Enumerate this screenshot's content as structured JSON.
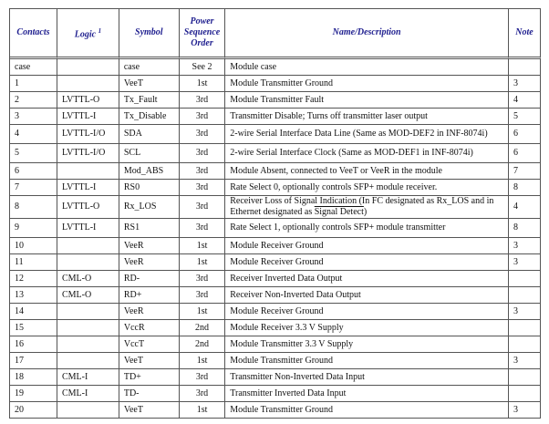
{
  "headers": {
    "contacts": "Contacts",
    "logic": "Logic",
    "logic_sup": "1",
    "symbol": "Symbol",
    "power": [
      "Power",
      "Sequence",
      "Order"
    ],
    "name": "Name/Description",
    "note": "Note"
  },
  "header_color": "#1f1f8f",
  "rows": [
    {
      "contact": "case",
      "logic": "",
      "symbol": "case",
      "power": "See 2",
      "desc": "Module case",
      "note": ""
    },
    {
      "contact": "1",
      "logic": "",
      "symbol": "VeeT",
      "power": "1st",
      "desc": "Module Transmitter Ground",
      "note": "3"
    },
    {
      "contact": "2",
      "logic": "LVTTL-O",
      "symbol": "Tx_Fault",
      "power": "3rd",
      "desc": "Module Transmitter Fault",
      "note": "4"
    },
    {
      "contact": "3",
      "logic": "LVTTL-I",
      "symbol": "Tx_Disable",
      "power": "3rd",
      "desc": "Transmitter Disable; Turns off transmitter laser output",
      "note": "5"
    },
    {
      "contact": "4",
      "logic": "LVTTL-I/O",
      "symbol": "SDA",
      "power": "3rd",
      "desc": "2-wire Serial Interface Data Line (Same as MOD-DEF2 in INF-8074i)",
      "note": "6"
    },
    {
      "contact": "5",
      "logic": "LVTTL-I/O",
      "symbol": "SCL",
      "power": "3rd",
      "desc": "2-wire Serial Interface Clock (Same as MOD-DEF1 in INF-8074i)",
      "note": "6"
    },
    {
      "contact": "6",
      "logic": "",
      "symbol": "Mod_ABS",
      "power": "3rd",
      "desc": "Module Absent, connected to VeeT or VeeR in the module",
      "note": "7"
    },
    {
      "contact": "7",
      "logic": "LVTTL-I",
      "symbol": "RS0",
      "power": "3rd",
      "desc": "Rate Select 0, optionally controls SFP+ module receiver.",
      "note": "8"
    },
    {
      "contact": "8",
      "logic": "LVTTL-O",
      "symbol": "Rx_LOS",
      "power": "3rd",
      "desc": "Receiver Loss of Signal Indication (In FC designated as Rx_LOS and in Ethernet designated as",
      "desc_overline": "Signal Detect",
      "desc_end": ")",
      "note": "4"
    },
    {
      "contact": "9",
      "logic": "LVTTL-I",
      "symbol": "RS1",
      "power": "3rd",
      "desc": "Rate Select 1, optionally controls SFP+ module transmitter",
      "note": "8"
    },
    {
      "contact": "10",
      "logic": "",
      "symbol": "VeeR",
      "power": "1st",
      "desc": "Module Receiver Ground",
      "note": "3"
    },
    {
      "contact": "11",
      "logic": "",
      "symbol": "VeeR",
      "power": "1st",
      "desc": "Module Receiver Ground",
      "note": "3"
    },
    {
      "contact": "12",
      "logic": "CML-O",
      "symbol": "RD-",
      "power": "3rd",
      "desc": "Receiver Inverted Data Output",
      "note": ""
    },
    {
      "contact": "13",
      "logic": "CML-O",
      "symbol": "RD+",
      "power": "3rd",
      "desc": "Receiver Non-Inverted Data Output",
      "note": ""
    },
    {
      "contact": "14",
      "logic": "",
      "symbol": "VeeR",
      "power": "1st",
      "desc": "Module Receiver Ground",
      "note": "3"
    },
    {
      "contact": "15",
      "logic": "",
      "symbol": "VccR",
      "power": "2nd",
      "desc": "Module Receiver 3.3 V Supply",
      "note": ""
    },
    {
      "contact": "16",
      "logic": "",
      "symbol": "VccT",
      "power": "2nd",
      "desc": "Module Transmitter 3.3 V Supply",
      "note": ""
    },
    {
      "contact": "17",
      "logic": "",
      "symbol": "VeeT",
      "power": "1st",
      "desc": "Module Transmitter Ground",
      "note": "3"
    },
    {
      "contact": "18",
      "logic": "CML-I",
      "symbol": "TD+",
      "power": "3rd",
      "desc": "Transmitter Non-Inverted Data Input",
      "note": ""
    },
    {
      "contact": "19",
      "logic": "CML-I",
      "symbol": "TD-",
      "power": "3rd",
      "desc": "Transmitter Inverted Data Input",
      "note": ""
    },
    {
      "contact": "20",
      "logic": "",
      "symbol": "VeeT",
      "power": "1st",
      "desc": "Module Transmitter Ground",
      "note": "3"
    }
  ]
}
